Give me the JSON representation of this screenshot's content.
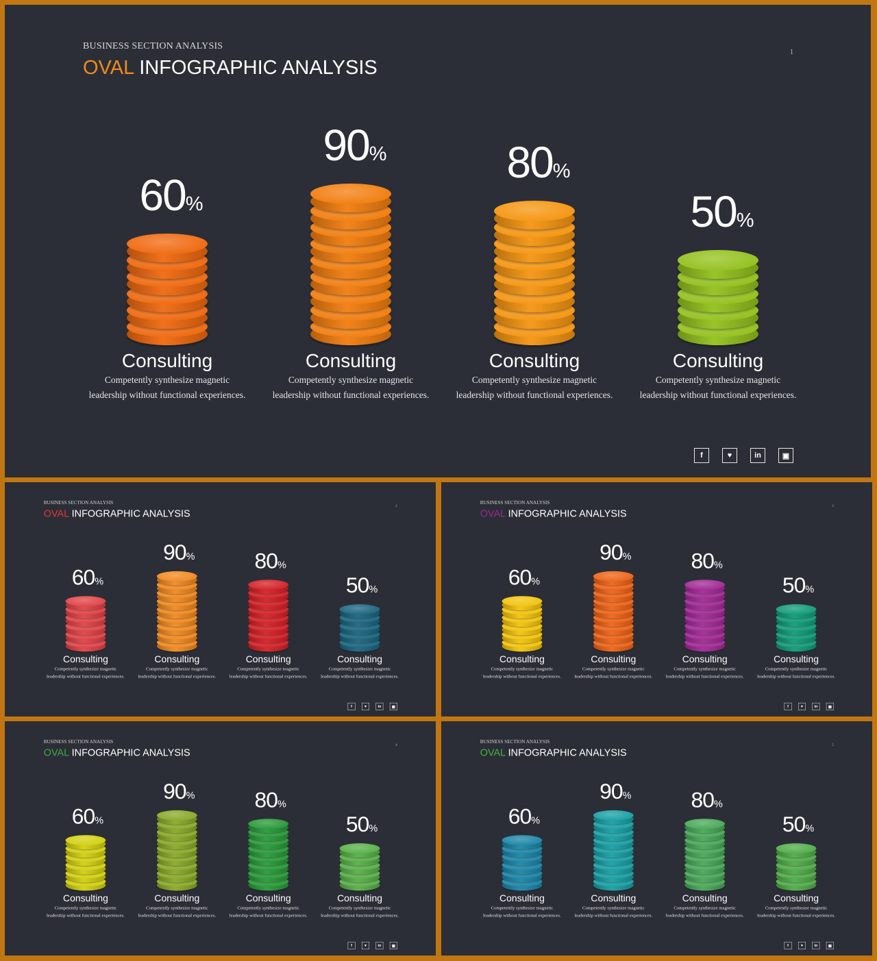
{
  "slides": [
    {
      "kicker": "BUSINESS SECTION ANALYSIS",
      "title_accent": "OVAL",
      "title_rest": " INFOGRAPHIC ANALYSIS",
      "accent_color": "#f28a1e",
      "page": "1",
      "columns": [
        {
          "value": 60,
          "value_label": "60",
          "unit": "%",
          "category": "Consulting",
          "desc1": "Competently synthesize magnetic",
          "desc2": "leadership without functional experiences.",
          "color": "#f06a10"
        },
        {
          "value": 90,
          "value_label": "90",
          "unit": "%",
          "category": "Consulting",
          "desc1": "Competently synthesize magnetic",
          "desc2": "leadership without functional experiences.",
          "color": "#f27e10"
        },
        {
          "value": 80,
          "value_label": "80",
          "unit": "%",
          "category": "Consulting",
          "desc1": "Competently synthesize magnetic",
          "desc2": "leadership without functional experiences.",
          "color": "#f59612"
        },
        {
          "value": 50,
          "value_label": "50",
          "unit": "%",
          "category": "Consulting",
          "desc1": "Competently synthesize magnetic",
          "desc2": "leadership without functional experiences.",
          "color": "#94c21e"
        }
      ]
    },
    {
      "kicker": "BUSINESS SECTION ANALYSIS",
      "title_accent": "OVAL",
      "title_rest": " INFOGRAPHIC ANALYSIS",
      "accent_color": "#e0383a",
      "page": "2",
      "columns": [
        {
          "value": 60,
          "value_label": "60",
          "unit": "%",
          "category": "Consulting",
          "desc1": "Competently synthesize magnetic",
          "desc2": "leadership without functional experiences.",
          "color": "#e04448"
        },
        {
          "value": 90,
          "value_label": "90",
          "unit": "%",
          "category": "Consulting",
          "desc1": "Competently synthesize magnetic",
          "desc2": "leadership without functional experiences.",
          "color": "#f08a22"
        },
        {
          "value": 80,
          "value_label": "80",
          "unit": "%",
          "category": "Consulting",
          "desc1": "Competently synthesize magnetic",
          "desc2": "leadership without functional experiences.",
          "color": "#d42228"
        },
        {
          "value": 50,
          "value_label": "50",
          "unit": "%",
          "category": "Consulting",
          "desc1": "Competently synthesize magnetic",
          "desc2": "leadership without functional experiences.",
          "color": "#1c6680"
        }
      ]
    },
    {
      "kicker": "BUSINESS SECTION ANALYSIS",
      "title_accent": "OVAL",
      "title_rest": " INFOGRAPHIC ANALYSIS",
      "accent_color": "#9a2a8e",
      "page": "3",
      "columns": [
        {
          "value": 60,
          "value_label": "60",
          "unit": "%",
          "category": "Consulting",
          "desc1": "Competently synthesize magnetic",
          "desc2": "leadership without functional experiences.",
          "color": "#f2c40e"
        },
        {
          "value": 90,
          "value_label": "90",
          "unit": "%",
          "category": "Consulting",
          "desc1": "Competently synthesize magnetic",
          "desc2": "leadership without functional experiences.",
          "color": "#ee6418"
        },
        {
          "value": 80,
          "value_label": "80",
          "unit": "%",
          "category": "Consulting",
          "desc1": "Competently synthesize magnetic",
          "desc2": "leadership without functional experiences.",
          "color": "#a22a96"
        },
        {
          "value": 50,
          "value_label": "50",
          "unit": "%",
          "category": "Consulting",
          "desc1": "Competently synthesize magnetic",
          "desc2": "leadership without functional experiences.",
          "color": "#129c78"
        }
      ]
    },
    {
      "kicker": "BUSINESS SECTION ANALYSIS",
      "title_accent": "OVAL",
      "title_rest": " INFOGRAPHIC ANALYSIS",
      "accent_color": "#3caa46",
      "page": "4",
      "columns": [
        {
          "value": 60,
          "value_label": "60",
          "unit": "%",
          "category": "Consulting",
          "desc1": "Competently synthesize magnetic",
          "desc2": "leadership without functional experiences.",
          "color": "#d2d012"
        },
        {
          "value": 90,
          "value_label": "90",
          "unit": "%",
          "category": "Consulting",
          "desc1": "Competently synthesize magnetic",
          "desc2": "leadership without functional experiences.",
          "color": "#8aaa2a"
        },
        {
          "value": 80,
          "value_label": "80",
          "unit": "%",
          "category": "Consulting",
          "desc1": "Competently synthesize magnetic",
          "desc2": "leadership without functional experiences.",
          "color": "#2a9a3a"
        },
        {
          "value": 50,
          "value_label": "50",
          "unit": "%",
          "category": "Consulting",
          "desc1": "Competently synthesize magnetic",
          "desc2": "leadership without functional experiences.",
          "color": "#5ab04a"
        }
      ]
    },
    {
      "kicker": "BUSINESS SECTION ANALYSIS",
      "title_accent": "OVAL",
      "title_rest": " INFOGRAPHIC ANALYSIS",
      "accent_color": "#46b046",
      "page": "5",
      "columns": [
        {
          "value": 60,
          "value_label": "60",
          "unit": "%",
          "category": "Consulting",
          "desc1": "Competently synthesize magnetic",
          "desc2": "leadership without functional experiences.",
          "color": "#1e86a8"
        },
        {
          "value": 90,
          "value_label": "90",
          "unit": "%",
          "category": "Consulting",
          "desc1": "Competently synthesize magnetic",
          "desc2": "leadership without functional experiences.",
          "color": "#1aa0a4"
        },
        {
          "value": 80,
          "value_label": "80",
          "unit": "%",
          "category": "Consulting",
          "desc1": "Competently synthesize magnetic",
          "desc2": "leadership without functional experiences.",
          "color": "#4aa85a"
        },
        {
          "value": 50,
          "value_label": "50",
          "unit": "%",
          "category": "Consulting",
          "desc1": "Competently synthesize magnetic",
          "desc2": "leadership without functional experiences.",
          "color": "#52ac4a"
        }
      ]
    }
  ],
  "social": [
    {
      "icon": "facebook-icon",
      "glyph": "f"
    },
    {
      "icon": "twitter-icon",
      "glyph": "♥"
    },
    {
      "icon": "linkedin-icon",
      "glyph": "in"
    },
    {
      "icon": "instagram-icon",
      "glyph": "▣"
    }
  ]
}
